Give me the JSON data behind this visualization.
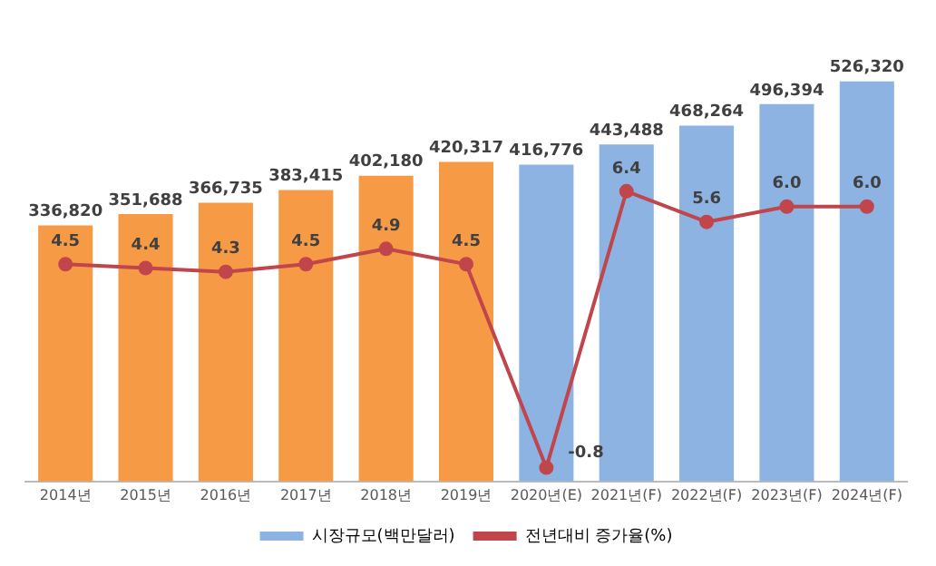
{
  "chart_data": {
    "type": "bar",
    "categories": [
      "2014년",
      "2015년",
      "2016년",
      "2017년",
      "2018년",
      "2019년",
      "2020년(E)",
      "2021년(F)",
      "2022년(F)",
      "2023년(F)",
      "2024년(F)"
    ],
    "series": [
      {
        "name": "시장규모(백만달러)",
        "color": "#8db3e2",
        "colors": [
          "#f79a46",
          "#f79a46",
          "#f79a46",
          "#f79a46",
          "#f79a46",
          "#f79a46",
          "#8db3e2",
          "#8db3e2",
          "#8db3e2",
          "#8db3e2",
          "#8db3e2"
        ],
        "values": [
          336820,
          351688,
          366735,
          383415,
          402180,
          420317,
          416776,
          443488,
          468264,
          496394,
          526320
        ],
        "value_labels": [
          "336,820",
          "351,688",
          "366,735",
          "383,415",
          "402,180",
          "420,317",
          "416,776",
          "443,488",
          "468,264",
          "496,394",
          "526,320"
        ]
      },
      {
        "name": "전년대비 증가율(%)",
        "type": "line",
        "axis": "y2",
        "color": "#c0464b",
        "values": [
          4.5,
          4.4,
          4.3,
          4.5,
          4.9,
          4.5,
          -0.8,
          6.4,
          5.6,
          6.0,
          6.0
        ],
        "value_labels": [
          "4.5",
          "4.4",
          "4.3",
          "4.5",
          "4.9",
          "4.5",
          "-0.8",
          "6.4",
          "5.6",
          "6.0",
          "6.0"
        ]
      }
    ],
    "grid": false,
    "legend": "bottom",
    "tick_labels": "x",
    "marker": "circle",
    "line_style": "solid"
  }
}
